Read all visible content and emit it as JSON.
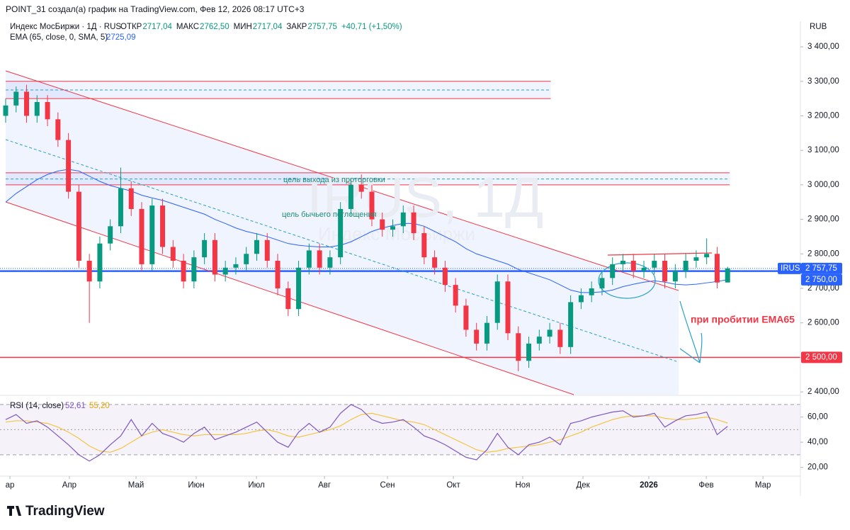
{
  "header": {
    "credit": "POINT_31 создал(а) график на TradingView.com, Фев 12, 2026 08:17 UTC+3",
    "logo": "TradingView"
  },
  "chart_data": [
    {
      "type": "candlestick",
      "legend": "Индекс МосБиржи · 1Д · RUS",
      "legend_fields": [
        {
          "label": "ОТКР",
          "value_label": "2717,04"
        },
        {
          "label": "МАКС",
          "value_label": "2762,50"
        },
        {
          "label": "МИН",
          "value_label": "2717,04"
        },
        {
          "label": "ЗАКР",
          "value_label": "2757,75"
        }
      ],
      "change_label": "+40,71 (+1,50%)",
      "currency": "RUB",
      "symbol": "IRUS",
      "last_price_label": "2 757,75",
      "up_color": "#089981",
      "down_color": "#f23645",
      "open": [
        3200,
        3230,
        3270,
        3200,
        3240,
        3190,
        3130,
        2980,
        2780,
        2720,
        2830,
        2880,
        2990,
        2930,
        2770,
        2940,
        2820,
        2780,
        2720,
        2790,
        2840,
        2740,
        2760,
        2770,
        2800,
        2840,
        2780,
        2700,
        2640,
        2760,
        2810,
        2760,
        2790,
        2930,
        3000,
        2980,
        2900,
        2870,
        2880,
        2920,
        2860,
        2790,
        2760,
        2710,
        2650,
        2580,
        2540,
        2600,
        2720,
        2570,
        2490,
        2540,
        2560,
        2580,
        2530,
        2660,
        2680,
        2700,
        2730,
        2770,
        2780,
        2750,
        2760,
        2780,
        2720,
        2750,
        2780,
        2790,
        2800,
        2717.04
      ],
      "high": [
        3250,
        3285,
        3290,
        3260,
        3260,
        3210,
        3150,
        3000,
        2800,
        2850,
        2900,
        3050,
        3010,
        2950,
        2960,
        2960,
        2840,
        2800,
        2810,
        2860,
        2860,
        2780,
        2790,
        2820,
        2860,
        2860,
        2800,
        2720,
        2780,
        2830,
        2830,
        2810,
        2950,
        3020,
        3030,
        3000,
        2920,
        2900,
        2940,
        2940,
        2880,
        2810,
        2780,
        2730,
        2670,
        2600,
        2620,
        2740,
        2740,
        2590,
        2560,
        2580,
        2600,
        2600,
        2680,
        2700,
        2720,
        2750,
        2790,
        2800,
        2800,
        2780,
        2800,
        2800,
        2770,
        2800,
        2810,
        2845,
        2820,
        2762.5
      ],
      "low": [
        3180,
        3210,
        3180,
        3180,
        3170,
        3110,
        2960,
        2760,
        2600,
        2700,
        2810,
        2860,
        2910,
        2750,
        2750,
        2800,
        2760,
        2700,
        2700,
        2770,
        2720,
        2720,
        2740,
        2750,
        2780,
        2760,
        2680,
        2620,
        2620,
        2740,
        2740,
        2740,
        2770,
        2910,
        2960,
        2880,
        2850,
        2850,
        2860,
        2840,
        2770,
        2740,
        2690,
        2630,
        2560,
        2520,
        2520,
        2580,
        2550,
        2460,
        2470,
        2520,
        2540,
        2510,
        2510,
        2640,
        2660,
        2680,
        2710,
        2750,
        2730,
        2730,
        2740,
        2700,
        2700,
        2730,
        2760,
        2770,
        2700,
        2717.04
      ],
      "close": [
        3230,
        3270,
        3200,
        3240,
        3190,
        3130,
        2980,
        2780,
        2720,
        2830,
        2880,
        2990,
        2930,
        2770,
        2940,
        2820,
        2780,
        2720,
        2790,
        2840,
        2740,
        2760,
        2770,
        2800,
        2840,
        2780,
        2700,
        2640,
        2760,
        2810,
        2760,
        2790,
        2930,
        3000,
        2980,
        2900,
        2870,
        2880,
        2920,
        2860,
        2790,
        2760,
        2710,
        2650,
        2580,
        2540,
        2600,
        2720,
        2570,
        2490,
        2540,
        2560,
        2580,
        2530,
        2660,
        2680,
        2700,
        2730,
        2770,
        2780,
        2750,
        2760,
        2780,
        2720,
        2750,
        2780,
        2790,
        2800,
        2717.04,
        2757.75
      ],
      "series": [
        {
          "name": "EMA (65, close, 0, SMA, 5)",
          "color": "#2962ff",
          "value_label": "2725,09",
          "values": [
            2950,
            2975,
            2995,
            3015,
            3030,
            3040,
            3045,
            3040,
            3025,
            3010,
            2998,
            2990,
            2982,
            2970,
            2962,
            2955,
            2945,
            2935,
            2925,
            2915,
            2900,
            2888,
            2875,
            2865,
            2858,
            2850,
            2840,
            2830,
            2825,
            2822,
            2820,
            2820,
            2825,
            2835,
            2850,
            2865,
            2875,
            2882,
            2888,
            2888,
            2880,
            2865,
            2850,
            2835,
            2815,
            2800,
            2790,
            2780,
            2770,
            2755,
            2745,
            2735,
            2725,
            2710,
            2695,
            2688,
            2688,
            2690,
            2695,
            2705,
            2712,
            2718,
            2722,
            2718,
            2712,
            2710,
            2712,
            2716,
            2720,
            2725.09
          ]
        }
      ],
      "levels": [
        {
          "value": 2750,
          "label": "2 750,00",
          "color": "#2962ff"
        },
        {
          "value": 2500,
          "label": "2 500,00",
          "color": "#f23645"
        }
      ],
      "zones": [
        {
          "top": 3300,
          "bottom": 3250,
          "mid": 3275,
          "end": 52.1
        },
        {
          "top": 3035,
          "bottom": 3000,
          "mid": 3017,
          "end": 69.2
        }
      ],
      "annotations": [
        "цель выхода из проторговки",
        "цель бычьего поглощения",
        "при пробитии EMA65"
      ],
      "watermark": [
        "IRUS, 1Д",
        "Индекс МосБиржи"
      ],
      "xlim": [
        -0.54,
        75.96
      ],
      "xticks": [
        {
          "value": 0.41,
          "label": "ар"
        },
        {
          "value": 6.09,
          "label": "Апр"
        },
        {
          "value": 12.46,
          "label": "Май"
        },
        {
          "value": 18.21,
          "label": "Июн"
        },
        {
          "value": 23.97,
          "label": "Июл"
        },
        {
          "value": 30.47,
          "label": "Авг"
        },
        {
          "value": 36.49,
          "label": "Сен"
        },
        {
          "value": 42.79,
          "label": "Окт"
        },
        {
          "value": 49.42,
          "label": "Ноя"
        },
        {
          "value": 55.18,
          "label": "Дек"
        },
        {
          "value": 61.47,
          "label": "2026"
        },
        {
          "value": 66.96,
          "label": "Фев"
        },
        {
          "value": 72.38,
          "label": "Мар"
        }
      ],
      "ylim": [
        2394,
        3433
      ],
      "yticks": [
        {
          "value": 2400,
          "label": "2 400,00"
        },
        {
          "value": 2500,
          "label": "2 500,00"
        },
        {
          "value": 2600,
          "label": "2 600,00"
        },
        {
          "value": 2700,
          "label": "2 700,00"
        },
        {
          "value": 2800,
          "label": "2 800,00"
        },
        {
          "value": 2900,
          "label": "2 900,00"
        },
        {
          "value": 3000,
          "label": "3 000,00"
        },
        {
          "value": 3100,
          "label": "3 100,00"
        },
        {
          "value": 3200,
          "label": "3 200,00"
        },
        {
          "value": 3300,
          "label": "3 300,00"
        },
        {
          "value": 3400,
          "label": "3 400,00"
        }
      ]
    },
    {
      "type": "line",
      "title": "RSI (14, close)",
      "series": [
        {
          "color": "#7e57c2",
          "value_label": "52,61",
          "values": [
            58,
            62,
            55,
            57,
            52,
            45,
            38,
            30,
            25,
            30,
            38,
            45,
            58,
            45,
            55,
            47,
            44,
            40,
            47,
            52,
            42,
            45,
            48,
            52,
            56,
            48,
            40,
            36,
            48,
            55,
            48,
            52,
            63,
            70,
            66,
            58,
            55,
            56,
            58,
            52,
            45,
            42,
            38,
            33,
            28,
            26,
            34,
            47,
            36,
            30,
            38,
            40,
            44,
            38,
            55,
            57,
            60,
            62,
            64,
            65,
            60,
            61,
            63,
            52,
            57,
            61,
            62,
            64,
            46,
            52.61
          ]
        },
        {
          "color": "#f5c542",
          "value_label": "55,20",
          "values": [
            56,
            57,
            57,
            56,
            55,
            52,
            48,
            43,
            37,
            33,
            32,
            35,
            40,
            45,
            48,
            50,
            48,
            46,
            45,
            46,
            46,
            46,
            46,
            47,
            49,
            50,
            48,
            45,
            44,
            46,
            48,
            50,
            53,
            58,
            62,
            63,
            61,
            59,
            57,
            56,
            54,
            50,
            46,
            42,
            38,
            34,
            32,
            33,
            35,
            36,
            37,
            38,
            40,
            42,
            45,
            48,
            52,
            55,
            58,
            60,
            61,
            61,
            61,
            59,
            58,
            58,
            59,
            60,
            58,
            55.2
          ]
        }
      ],
      "bands": [
        30,
        50,
        70
      ],
      "ylim": [
        13,
        75
      ],
      "yticks": [
        {
          "value": 20,
          "label": "20,00"
        },
        {
          "value": 40,
          "label": "40,00"
        },
        {
          "value": 60,
          "label": "60,00"
        }
      ]
    }
  ]
}
